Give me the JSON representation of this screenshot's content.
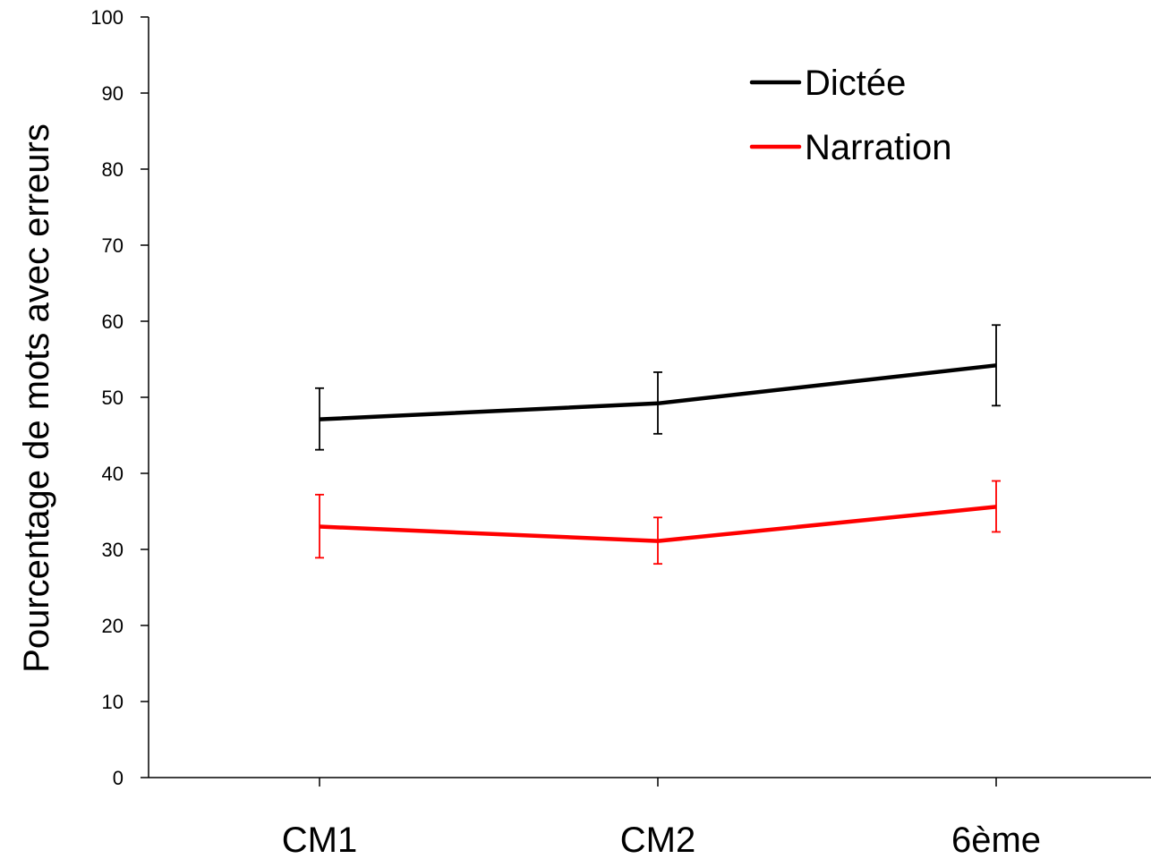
{
  "chart_data": {
    "type": "line",
    "title": "",
    "xlabel": "",
    "ylabel": "Pourcentage de mots avec erreurs",
    "categories": [
      "CM1",
      "CM2",
      "6ème"
    ],
    "ylim": [
      0,
      100
    ],
    "yticks": [
      0,
      10,
      20,
      30,
      40,
      50,
      60,
      70,
      80,
      90,
      100
    ],
    "grid": false,
    "legend_position": "top-right",
    "series": [
      {
        "name": "Dictée",
        "color": "#000000",
        "values": [
          47.1,
          49.2,
          54.2
        ],
        "error_low": [
          43.1,
          45.2,
          48.9
        ],
        "error_high": [
          51.2,
          53.3,
          59.5
        ]
      },
      {
        "name": "Narration",
        "color": "#ff0000",
        "values": [
          33.0,
          31.1,
          35.6
        ],
        "error_low": [
          28.9,
          28.1,
          32.3
        ],
        "error_high": [
          37.2,
          34.2,
          39.0
        ]
      }
    ]
  }
}
